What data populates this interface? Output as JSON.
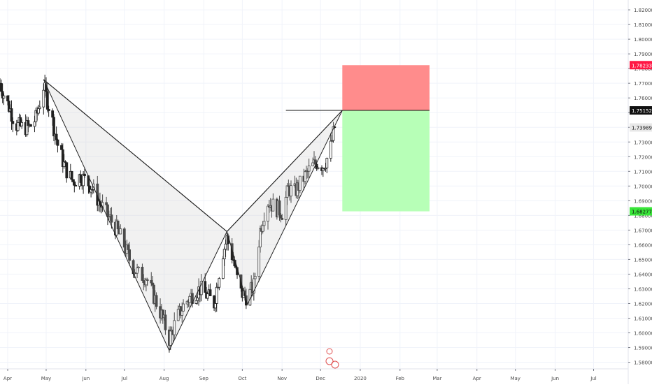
{
  "chart_data": {
    "type": "candlestick",
    "instrument_note": "",
    "y_axis": {
      "ticks": [
        "1.82000",
        "1.81000",
        "1.80000",
        "1.79000",
        "1.78000",
        "1.77000",
        "1.76000",
        "1.75000",
        "1.74000",
        "1.73000",
        "1.72000",
        "1.71000",
        "1.70000",
        "1.69000",
        "1.68000",
        "1.67000",
        "1.66000",
        "1.65000",
        "1.64000",
        "1.63000",
        "1.62000",
        "1.61000",
        "1.60000",
        "1.59000",
        "1.58000"
      ],
      "ylim": [
        1.5755,
        1.8267
      ],
      "position": "right"
    },
    "x_axis": {
      "ticks": [
        "Apr",
        "May",
        "Jun",
        "Jul",
        "Aug",
        "Sep",
        "Oct",
        "Nov",
        "Dec",
        "2020",
        "Feb",
        "Mar",
        "Apr",
        "May",
        "Jun",
        "Jul"
      ],
      "tick_dates": [
        "2019-04-01",
        "2019-05-01",
        "2019-06-01",
        "2019-07-01",
        "2019-08-01",
        "2019-09-01",
        "2019-10-01",
        "2019-11-01",
        "2019-12-01",
        "2020-01-01",
        "2020-02-01",
        "2020-03-01",
        "2020-04-01",
        "2020-05-01",
        "2020-06-01",
        "2020-07-01"
      ],
      "range": [
        "2019-03-26",
        "2020-07-28"
      ]
    },
    "price_labels": [
      {
        "text": "1.78233",
        "value": 1.78233,
        "color": "#ff1744"
      },
      {
        "text": "1.75152",
        "value": 1.75152,
        "color": "#111111"
      },
      {
        "text": "1.73989",
        "value": 1.73989,
        "color": "#e8e8e8"
      },
      {
        "text": "1.68277",
        "value": 1.68277,
        "color": "#39e639"
      }
    ],
    "pattern_points": [
      {
        "date": "2019-04-29",
        "value": 1.7725
      },
      {
        "date": "2019-08-05",
        "value": 1.588
      },
      {
        "date": "2019-09-19",
        "value": 1.669
      },
      {
        "date": "2019-10-05",
        "value": 1.6195
      },
      {
        "date": "2019-12-18",
        "value": 1.7515
      }
    ],
    "entry_line": {
      "date_start": "2019-11-04",
      "date_end": "2019-12-18",
      "value": 1.75152
    },
    "stop_zone": {
      "date_start": "2019-12-18",
      "date_end": "2020-02-24",
      "top": 1.78233,
      "bottom": 1.75152,
      "color": "#ff8c8c"
    },
    "target_zone": {
      "date_start": "2019-12-18",
      "date_end": "2020-02-24",
      "top": 1.75152,
      "bottom": 1.68277,
      "color": "#b7ffb7"
    },
    "close_path": [
      {
        "date": "2019-03-26",
        "value": 1.77
      },
      {
        "date": "2019-03-30",
        "value": 1.76
      },
      {
        "date": "2019-04-03",
        "value": 1.752
      },
      {
        "date": "2019-04-07",
        "value": 1.742
      },
      {
        "date": "2019-04-12",
        "value": 1.74
      },
      {
        "date": "2019-04-18",
        "value": 1.74
      },
      {
        "date": "2019-04-23",
        "value": 1.746
      },
      {
        "date": "2019-04-29",
        "value": 1.768
      },
      {
        "date": "2019-05-05",
        "value": 1.748
      },
      {
        "date": "2019-05-10",
        "value": 1.728
      },
      {
        "date": "2019-05-16",
        "value": 1.712
      },
      {
        "date": "2019-05-22",
        "value": 1.703
      },
      {
        "date": "2019-05-28",
        "value": 1.707
      },
      {
        "date": "2019-06-05",
        "value": 1.7
      },
      {
        "date": "2019-06-12",
        "value": 1.688
      },
      {
        "date": "2019-06-18",
        "value": 1.68
      },
      {
        "date": "2019-06-24",
        "value": 1.672
      },
      {
        "date": "2019-06-30",
        "value": 1.662
      },
      {
        "date": "2019-07-06",
        "value": 1.648
      },
      {
        "date": "2019-07-12",
        "value": 1.64
      },
      {
        "date": "2019-07-18",
        "value": 1.638
      },
      {
        "date": "2019-07-24",
        "value": 1.625
      },
      {
        "date": "2019-07-30",
        "value": 1.612
      },
      {
        "date": "2019-08-05",
        "value": 1.596
      },
      {
        "date": "2019-08-11",
        "value": 1.61
      },
      {
        "date": "2019-08-17",
        "value": 1.62
      },
      {
        "date": "2019-08-23",
        "value": 1.626
      },
      {
        "date": "2019-08-29",
        "value": 1.63
      },
      {
        "date": "2019-09-04",
        "value": 1.625
      },
      {
        "date": "2019-09-09",
        "value": 1.62
      },
      {
        "date": "2019-09-15",
        "value": 1.652
      },
      {
        "date": "2019-09-19",
        "value": 1.664
      },
      {
        "date": "2019-09-24",
        "value": 1.65
      },
      {
        "date": "2019-09-29",
        "value": 1.628
      },
      {
        "date": "2019-10-05",
        "value": 1.624
      },
      {
        "date": "2019-10-10",
        "value": 1.632
      },
      {
        "date": "2019-10-15",
        "value": 1.67
      },
      {
        "date": "2019-10-20",
        "value": 1.69
      },
      {
        "date": "2019-10-26",
        "value": 1.686
      },
      {
        "date": "2019-11-01",
        "value": 1.682
      },
      {
        "date": "2019-11-06",
        "value": 1.698
      },
      {
        "date": "2019-11-11",
        "value": 1.696
      },
      {
        "date": "2019-11-17",
        "value": 1.704
      },
      {
        "date": "2019-11-23",
        "value": 1.712
      },
      {
        "date": "2019-11-28",
        "value": 1.716
      },
      {
        "date": "2019-12-03",
        "value": 1.714
      },
      {
        "date": "2019-12-08",
        "value": 1.722
      },
      {
        "date": "2019-12-12",
        "value": 1.74
      }
    ]
  }
}
